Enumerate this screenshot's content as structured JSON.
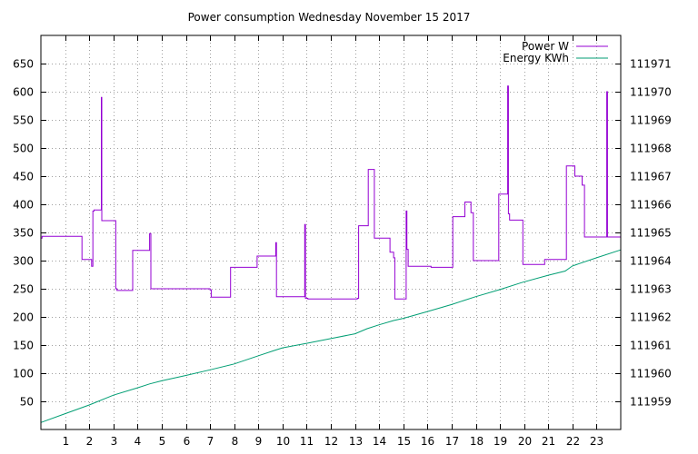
{
  "chart_data": {
    "type": "line",
    "title": "Power consumption Wednesday November 15 2017",
    "xlim": [
      0,
      24
    ],
    "x_ticks": [
      1,
      2,
      3,
      4,
      5,
      6,
      7,
      8,
      9,
      10,
      11,
      12,
      13,
      14,
      15,
      16,
      17,
      18,
      19,
      20,
      21,
      22,
      23
    ],
    "y_left": {
      "lim": [
        0,
        700
      ],
      "ticks": [
        50,
        100,
        150,
        200,
        250,
        300,
        350,
        400,
        450,
        500,
        550,
        600,
        650
      ]
    },
    "y_right": {
      "lim": [
        111958,
        111972
      ],
      "ticks": [
        111959,
        111960,
        111961,
        111962,
        111963,
        111964,
        111965,
        111966,
        111967,
        111968,
        111969,
        111970,
        111971
      ]
    },
    "grid": true,
    "legend_position": "top-right",
    "colors": {
      "power": "#9400d3",
      "energy": "#009e73",
      "grid": "#a0a0a0"
    },
    "series": [
      {
        "name": "Power W",
        "axis": "left",
        "step": true,
        "x": [
          0,
          0.05,
          1.7,
          2.1,
          2.15,
          2.2,
          2.5,
          2.52,
          2.55,
          3.1,
          3.15,
          3.2,
          3.8,
          3.85,
          4.5,
          4.55,
          4.6,
          7.0,
          7.05,
          7.8,
          7.85,
          8.9,
          8.95,
          9.7,
          9.72,
          9.75,
          10.9,
          10.92,
          10.95,
          11.05,
          13.1,
          13.15,
          13.5,
          13.55,
          13.75,
          13.8,
          14.35,
          14.45,
          14.6,
          14.65,
          15.1,
          15.12,
          15.15,
          15.2,
          16.1,
          16.15,
          17.0,
          17.05,
          17.5,
          17.55,
          17.75,
          17.8,
          17.9,
          18.9,
          18.95,
          19.3,
          19.32,
          19.35,
          19.4,
          19.9,
          19.95,
          20.8,
          20.85,
          21.7,
          21.75,
          22.05,
          22.1,
          22.35,
          22.4,
          22.5,
          23.4,
          23.42,
          23.45,
          24.0
        ],
        "y": [
          340,
          343,
          302,
          290,
          388,
          390,
          590,
          371,
          371,
          250,
          247,
          247,
          318,
          318,
          348,
          250,
          250,
          248,
          235,
          235,
          288,
          288,
          308,
          308,
          332,
          236,
          236,
          364,
          233,
          232,
          233,
          362,
          362,
          462,
          462,
          340,
          340,
          315,
          305,
          232,
          232,
          388,
          320,
          290,
          290,
          288,
          288,
          378,
          378,
          404,
          404,
          385,
          300,
          300,
          418,
          418,
          610,
          383,
          372,
          372,
          293,
          293,
          302,
          302,
          468,
          468,
          450,
          450,
          434,
          342,
          342,
          600,
          342,
          342
        ]
      },
      {
        "name": "Energy KWh",
        "axis": "right",
        "x": [
          0,
          1,
          2,
          3,
          4,
          4.5,
          5,
          6,
          7,
          8,
          9,
          9.7,
          10,
          11,
          12,
          13,
          13.5,
          14,
          14.6,
          15,
          16,
          17,
          17.5,
          18,
          19,
          19.9,
          21,
          21.7,
          22,
          23,
          24
        ],
        "y": [
          111958.25,
          111958.56,
          111958.87,
          111959.22,
          111959.48,
          111959.62,
          111959.73,
          111959.92,
          111960.12,
          111960.33,
          111960.62,
          111960.82,
          111960.9,
          111961.06,
          111961.23,
          111961.4,
          111961.58,
          111961.72,
          111961.87,
          111961.95,
          111962.19,
          111962.44,
          111962.58,
          111962.72,
          111962.97,
          111963.22,
          111963.48,
          111963.63,
          111963.81,
          111964.1,
          111964.38
        ]
      }
    ]
  }
}
